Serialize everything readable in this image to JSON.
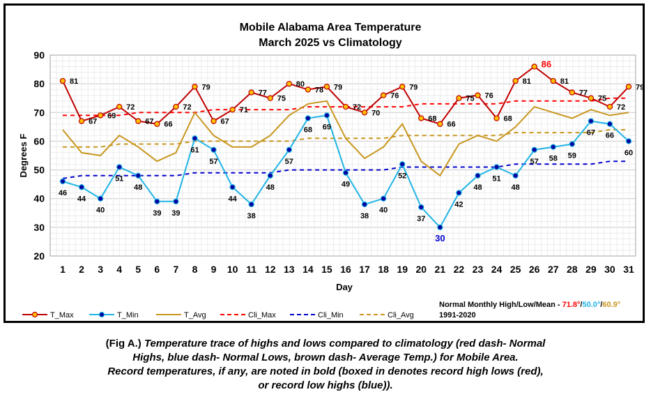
{
  "chart_data": {
    "type": "line",
    "title": "Mobile Alabama Area Temperature",
    "subtitle": "March 2025 vs Climatology",
    "xlabel": "Day",
    "ylabel": "Degrees F",
    "ylim": [
      20,
      90
    ],
    "yticks": [
      "20",
      "30",
      "40",
      "50",
      "60",
      "70",
      "80",
      "90"
    ],
    "x": [
      1,
      2,
      3,
      4,
      5,
      6,
      7,
      8,
      9,
      10,
      11,
      12,
      13,
      14,
      15,
      16,
      17,
      18,
      19,
      20,
      21,
      22,
      23,
      24,
      25,
      26,
      27,
      28,
      29,
      30,
      31
    ],
    "grid": true,
    "legend_position": "bottom",
    "series": [
      {
        "name": "T_Max",
        "color": "#c00000",
        "marker": "#ffc000",
        "values": [
          81,
          67,
          69,
          72,
          67,
          66,
          72,
          79,
          67,
          71,
          77,
          75,
          80,
          78,
          79,
          72,
          70,
          76,
          79,
          68,
          66,
          75,
          76,
          68,
          81,
          86,
          81,
          77,
          75,
          72,
          79
        ]
      },
      {
        "name": "T_Min",
        "color": "#1fb4e6",
        "marker": "#0000a0",
        "values": [
          46,
          44,
          40,
          51,
          48,
          39,
          39,
          61,
          57,
          44,
          38,
          48,
          57,
          68,
          69,
          49,
          38,
          40,
          52,
          37,
          30,
          42,
          48,
          51,
          48,
          57,
          58,
          59,
          67,
          66,
          60
        ]
      },
      {
        "name": "T_Avg",
        "color": "#c8961e",
        "values": [
          64,
          56,
          55,
          62,
          58,
          53,
          56,
          70,
          62,
          58,
          58,
          62,
          69,
          73,
          74,
          61,
          54,
          58,
          66,
          53,
          48,
          59,
          62,
          60,
          65,
          72,
          70,
          68,
          71,
          69,
          70
        ]
      },
      {
        "name": "Cli_Max",
        "color": "#ff0000",
        "dashed": true,
        "values": [
          69,
          69,
          69,
          69,
          70,
          70,
          70,
          70,
          71,
          71,
          71,
          71,
          71,
          72,
          72,
          72,
          72,
          72,
          72,
          73,
          73,
          73,
          73,
          73,
          74,
          74,
          74,
          74,
          74,
          75,
          75
        ]
      },
      {
        "name": "Cli_Min",
        "color": "#0000cc",
        "dashed": true,
        "values": [
          47,
          48,
          48,
          48,
          48,
          48,
          48,
          49,
          49,
          49,
          49,
          49,
          50,
          50,
          50,
          50,
          50,
          50,
          51,
          51,
          51,
          51,
          51,
          51,
          52,
          52,
          52,
          52,
          52,
          53,
          53
        ]
      },
      {
        "name": "Cli_Avg",
        "color": "#c8961e",
        "dashed": true,
        "values": [
          58,
          58,
          58,
          59,
          59,
          59,
          59,
          60,
          60,
          60,
          60,
          60,
          60,
          61,
          61,
          61,
          61,
          61,
          62,
          62,
          62,
          62,
          62,
          62,
          63,
          63,
          63,
          63,
          63,
          64,
          64
        ]
      }
    ],
    "highlighted_labels": [
      {
        "series": "T_Max",
        "day": 26,
        "value": 86,
        "color": "#ff0000"
      },
      {
        "series": "T_Min",
        "day": 21,
        "value": 30,
        "color": "#0000cc"
      }
    ]
  },
  "normals": {
    "label": "Normal Monthly High/Low/Mean - ",
    "high": "71.8°",
    "sep1": "/",
    "low": "50.0°",
    "sep2": "/",
    "mean": "60.9°",
    "period": "1991-2020",
    "high_color": "#ff0000",
    "low_color": "#1fb4e6",
    "mean_color": "#c8961e"
  },
  "caption": {
    "line1_prefix": "(Fig A.) ",
    "line1": "Temperature trace of highs and lows compared to climatology (red dash- Normal",
    "line2": "Highs, blue dash- Normal Lows, brown dash- Average Temp.) for Mobile Area.",
    "line3": "Record temperatures, if any, are noted in bold (boxed in denotes record high lows (red),",
    "line4": "or record low highs (blue))."
  }
}
